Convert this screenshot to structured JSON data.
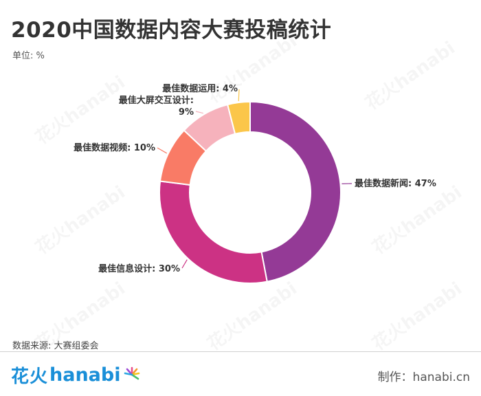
{
  "header": {
    "title": "2020中国数据内容大赛投稿统计",
    "unit": "单位: %"
  },
  "chart_data": {
    "type": "pie",
    "donut": true,
    "start": "12 o'clock",
    "direction": "clockwise",
    "slices": [
      {
        "label": "最佳数据新闻",
        "value": 47,
        "display": "最佳数据新闻: 47%",
        "color": "#943a96"
      },
      {
        "label": "最佳信息设计",
        "value": 30,
        "display": "最佳信息设计: 30%",
        "color": "#cc3284"
      },
      {
        "label": "最佳数据视频",
        "value": 10,
        "display": "最佳数据视频: 10%",
        "color": "#f97b66"
      },
      {
        "label": "最佳大屏交互设计",
        "value": 9,
        "display_line1": "最佳大屏交互设计:",
        "display_line2": "9%",
        "color": "#f6b2bc"
      },
      {
        "label": "最佳数据运用",
        "value": 4,
        "display": "最佳数据运用: 4%",
        "color": "#fbc64a"
      }
    ]
  },
  "footer": {
    "source": "数据来源: 大赛组委会",
    "logo_cn": "花火",
    "logo_en": "hanabi",
    "credit": "制作：hanabi.cn"
  },
  "watermark": {
    "text": "花火hanabi"
  },
  "colors": {
    "brand": "#1a8fd8",
    "title": "#333333"
  }
}
